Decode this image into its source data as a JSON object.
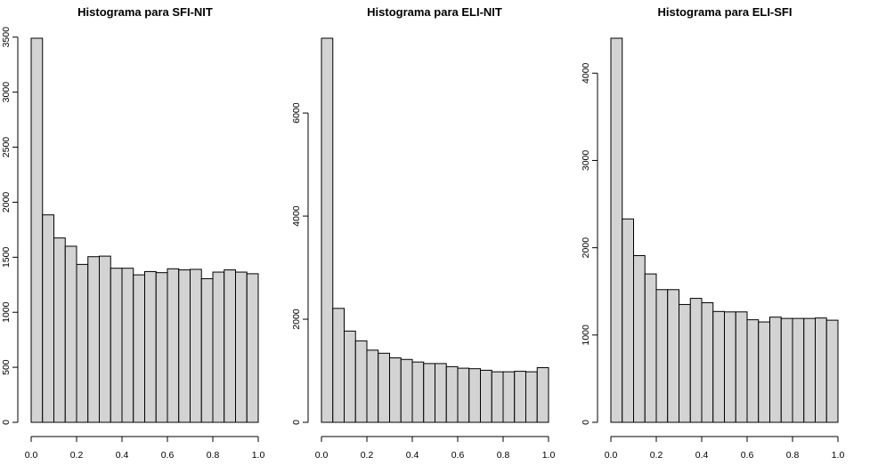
{
  "chart_data": [
    {
      "type": "bar",
      "title": "Histograma para SFI-NIT",
      "xlabel": "",
      "ylabel": "",
      "bar_fill": "#d3d3d3",
      "bar_stroke": "#000000",
      "bin_edges": [
        0.0,
        0.05,
        0.1,
        0.15,
        0.2,
        0.25,
        0.3,
        0.35,
        0.4,
        0.45,
        0.5,
        0.55,
        0.6,
        0.65,
        0.7,
        0.75,
        0.8,
        0.85,
        0.9,
        0.95,
        1.0
      ],
      "values": [
        3490,
        1885,
        1675,
        1600,
        1435,
        1505,
        1510,
        1400,
        1400,
        1340,
        1370,
        1360,
        1395,
        1385,
        1390,
        1305,
        1365,
        1385,
        1365,
        1350
      ],
      "xlim": [
        0,
        1
      ],
      "ylim": [
        0,
        3490
      ],
      "xticks": [
        "0.0",
        "0.2",
        "0.4",
        "0.6",
        "0.8",
        "1.0"
      ],
      "xtick_values": [
        0,
        0.2,
        0.4,
        0.6,
        0.8,
        1.0
      ],
      "yticks": [
        "0",
        "500",
        "1000",
        "1500",
        "2000",
        "2500",
        "3000",
        "3500"
      ],
      "ytick_values": [
        0,
        500,
        1000,
        1500,
        2000,
        2500,
        3000,
        3500
      ],
      "grid": false,
      "legend": "none"
    },
    {
      "type": "bar",
      "title": "Histograma para ELI-NIT",
      "xlabel": "",
      "ylabel": "",
      "bar_fill": "#d3d3d3",
      "bar_stroke": "#000000",
      "bin_edges": [
        0.0,
        0.05,
        0.1,
        0.15,
        0.2,
        0.25,
        0.3,
        0.35,
        0.4,
        0.45,
        0.5,
        0.55,
        0.6,
        0.65,
        0.7,
        0.75,
        0.8,
        0.85,
        0.9,
        0.95,
        1.0
      ],
      "values": [
        7450,
        2210,
        1770,
        1580,
        1400,
        1340,
        1250,
        1220,
        1170,
        1140,
        1140,
        1080,
        1050,
        1040,
        1010,
        980,
        980,
        990,
        980,
        1060
      ],
      "xlim": [
        0,
        1
      ],
      "ylim": [
        0,
        7450
      ],
      "xticks": [
        "0.0",
        "0.2",
        "0.4",
        "0.6",
        "0.8",
        "1.0"
      ],
      "xtick_values": [
        0,
        0.2,
        0.4,
        0.6,
        0.8,
        1.0
      ],
      "yticks": [
        "0",
        "2000",
        "4000",
        "6000"
      ],
      "ytick_values": [
        0,
        2000,
        4000,
        6000
      ],
      "grid": false,
      "legend": "none"
    },
    {
      "type": "bar",
      "title": "Histograma para ELI-SFI",
      "xlabel": "",
      "ylabel": "",
      "bar_fill": "#d3d3d3",
      "bar_stroke": "#000000",
      "bin_edges": [
        0.0,
        0.05,
        0.1,
        0.15,
        0.2,
        0.25,
        0.3,
        0.35,
        0.4,
        0.45,
        0.5,
        0.55,
        0.6,
        0.65,
        0.7,
        0.75,
        0.8,
        0.85,
        0.9,
        0.95,
        1.0
      ],
      "values": [
        4400,
        2330,
        1910,
        1700,
        1520,
        1520,
        1350,
        1420,
        1370,
        1270,
        1265,
        1265,
        1175,
        1150,
        1205,
        1190,
        1190,
        1190,
        1195,
        1170
      ],
      "xlim": [
        0,
        1
      ],
      "ylim": [
        0,
        4400
      ],
      "xticks": [
        "0.0",
        "0.2",
        "0.4",
        "0.6",
        "0.8",
        "1.0"
      ],
      "xtick_values": [
        0,
        0.2,
        0.4,
        0.6,
        0.8,
        1.0
      ],
      "yticks": [
        "0",
        "1000",
        "2000",
        "3000",
        "4000"
      ],
      "ytick_values": [
        0,
        1000,
        2000,
        3000,
        4000
      ],
      "grid": false,
      "legend": "none"
    }
  ]
}
